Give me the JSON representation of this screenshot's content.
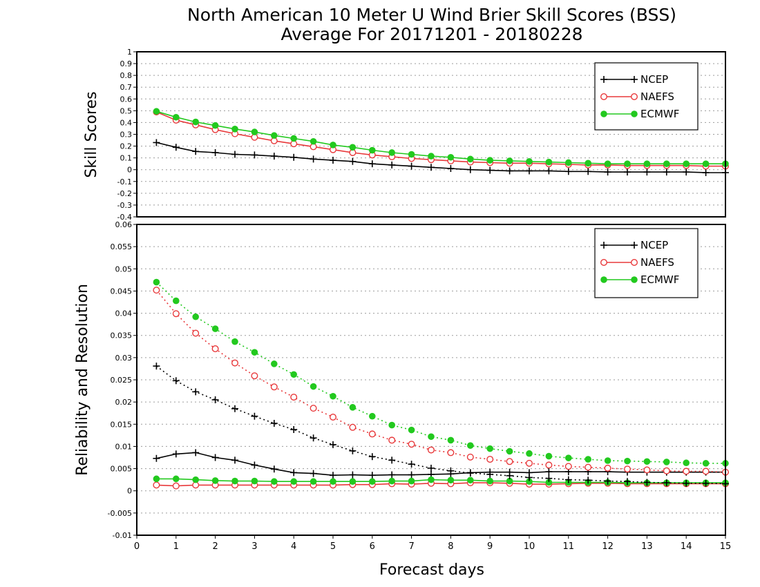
{
  "title": {
    "line1": "North American 10 Meter U Wind Brier Skill Scores (BSS)",
    "line2": "Average For 20171201 - 20180228"
  },
  "xlabel": "Forecast days",
  "colors": {
    "NCEP": "#000000",
    "NAEFS": "#e8383a",
    "ECMWF": "#22c91e"
  },
  "chart_data": [
    {
      "type": "line",
      "ylabel": "Skill Scores",
      "xlim": [
        0,
        15
      ],
      "ylim": [
        -0.4,
        1
      ],
      "yticks": [
        "1",
        "0.9",
        "0.8",
        "0.7",
        "0.6",
        "0.5",
        "0.4",
        "0.3",
        "0.2",
        "0.1",
        "0",
        "-0.1",
        "-0.2",
        "-0.3",
        "-0.4"
      ],
      "grid": true,
      "legend": "top-right",
      "x": [
        0.5,
        1,
        1.5,
        2,
        2.5,
        3,
        3.5,
        4,
        4.5,
        5,
        5.5,
        6,
        6.5,
        7,
        7.5,
        8,
        8.5,
        9,
        9.5,
        10,
        10.5,
        11,
        11.5,
        12,
        12.5,
        13,
        13.5,
        14,
        14.5,
        15
      ],
      "series": [
        {
          "name": "NCEP",
          "marker": "plus",
          "style": "solid",
          "values": [
            0.23,
            0.19,
            0.155,
            0.145,
            0.13,
            0.125,
            0.115,
            0.105,
            0.09,
            0.08,
            0.07,
            0.05,
            0.04,
            0.03,
            0.02,
            0.01,
            0.0,
            -0.005,
            -0.01,
            -0.01,
            -0.01,
            -0.015,
            -0.015,
            -0.02,
            -0.02,
            -0.02,
            -0.02,
            -0.02,
            -0.025,
            -0.025
          ]
        },
        {
          "name": "NAEFS",
          "marker": "open-circle",
          "style": "solid",
          "values": [
            0.49,
            0.42,
            0.38,
            0.34,
            0.305,
            0.275,
            0.245,
            0.22,
            0.195,
            0.17,
            0.145,
            0.125,
            0.11,
            0.095,
            0.085,
            0.075,
            0.065,
            0.06,
            0.055,
            0.055,
            0.05,
            0.045,
            0.04,
            0.04,
            0.035,
            0.035,
            0.035,
            0.035,
            0.03,
            0.03
          ]
        },
        {
          "name": "ECMWF",
          "marker": "filled-circle",
          "style": "solid",
          "values": [
            0.495,
            0.445,
            0.405,
            0.375,
            0.345,
            0.32,
            0.29,
            0.265,
            0.24,
            0.21,
            0.19,
            0.165,
            0.145,
            0.13,
            0.115,
            0.105,
            0.09,
            0.08,
            0.075,
            0.07,
            0.065,
            0.06,
            0.055,
            0.05,
            0.05,
            0.05,
            0.05,
            0.05,
            0.05,
            0.05
          ]
        }
      ]
    },
    {
      "type": "line",
      "ylabel": "Reliability and Resolution",
      "xlim": [
        0,
        15
      ],
      "ylim": [
        -0.01,
        0.06
      ],
      "yticks": [
        "0.06",
        "0.055",
        "0.05",
        "0.045",
        "0.04",
        "0.035",
        "0.03",
        "0.025",
        "0.02",
        "0.015",
        "0.01",
        "0.005",
        "0",
        "-0.005",
        "-0.01"
      ],
      "xticks": [
        "0",
        "1",
        "2",
        "3",
        "4",
        "5",
        "6",
        "7",
        "8",
        "9",
        "10",
        "11",
        "12",
        "13",
        "14",
        "15"
      ],
      "grid": true,
      "legend": "top-right",
      "x": [
        0.5,
        1,
        1.5,
        2,
        2.5,
        3,
        3.5,
        4,
        4.5,
        5,
        5.5,
        6,
        6.5,
        7,
        7.5,
        8,
        8.5,
        9,
        9.5,
        10,
        10.5,
        11,
        11.5,
        12,
        12.5,
        13,
        13.5,
        14,
        14.5,
        15
      ],
      "series": [
        {
          "name": "NCEP",
          "marker": "plus",
          "style": "solid",
          "values": [
            0.0073,
            0.0083,
            0.0086,
            0.0075,
            0.0069,
            0.0058,
            0.0049,
            0.0041,
            0.0039,
            0.0035,
            0.0036,
            0.0035,
            0.0036,
            0.0036,
            0.0037,
            0.0038,
            0.0041,
            0.0042,
            0.0042,
            0.0041,
            0.0043,
            0.0043,
            0.0043,
            0.0043,
            0.0042,
            0.0042,
            0.0042,
            0.0042,
            0.0042,
            0.0042
          ]
        },
        {
          "name": "NAEFS",
          "marker": "open-circle",
          "style": "solid",
          "values": [
            0.0013,
            0.0011,
            0.0013,
            0.0013,
            0.0013,
            0.0013,
            0.0013,
            0.0013,
            0.0013,
            0.0013,
            0.0014,
            0.0014,
            0.0016,
            0.0015,
            0.0017,
            0.0016,
            0.0018,
            0.0018,
            0.0017,
            0.0015,
            0.0015,
            0.0016,
            0.0017,
            0.0017,
            0.0016,
            0.0016,
            0.0016,
            0.0016,
            0.0016,
            0.0016
          ]
        },
        {
          "name": "ECMWF",
          "marker": "filled-circle",
          "style": "solid",
          "values": [
            0.0027,
            0.0027,
            0.0025,
            0.0023,
            0.0022,
            0.0022,
            0.0021,
            0.0021,
            0.0021,
            0.0021,
            0.0021,
            0.0021,
            0.0022,
            0.0022,
            0.0025,
            0.0024,
            0.0024,
            0.0022,
            0.0022,
            0.0021,
            0.0019,
            0.0019,
            0.0019,
            0.0019,
            0.0018,
            0.0018,
            0.0018,
            0.0018,
            0.0018,
            0.0018
          ]
        },
        {
          "name": "NCEP",
          "marker": "plus",
          "style": "dotted",
          "legend": false,
          "values": [
            0.0281,
            0.0248,
            0.0223,
            0.0205,
            0.0185,
            0.0168,
            0.0152,
            0.0138,
            0.0119,
            0.0104,
            0.009,
            0.0077,
            0.0069,
            0.006,
            0.0051,
            0.0045,
            0.004,
            0.0037,
            0.0034,
            0.003,
            0.0028,
            0.0025,
            0.0024,
            0.0022,
            0.0021,
            0.0019,
            0.0018,
            0.0017,
            0.0017,
            0.0016
          ]
        },
        {
          "name": "NAEFS",
          "marker": "open-circle",
          "style": "dotted",
          "legend": false,
          "values": [
            0.0452,
            0.0399,
            0.0355,
            0.032,
            0.0288,
            0.0259,
            0.0234,
            0.0211,
            0.0186,
            0.0166,
            0.0143,
            0.0128,
            0.0114,
            0.0105,
            0.0092,
            0.0086,
            0.0076,
            0.0071,
            0.0066,
            0.0062,
            0.0058,
            0.0055,
            0.0053,
            0.0051,
            0.0049,
            0.0047,
            0.0045,
            0.0044,
            0.0044,
            0.0042
          ]
        },
        {
          "name": "ECMWF",
          "marker": "filled-circle",
          "style": "dotted",
          "legend": false,
          "values": [
            0.047,
            0.0428,
            0.0392,
            0.0365,
            0.0336,
            0.0312,
            0.0286,
            0.0262,
            0.0235,
            0.0213,
            0.0188,
            0.0168,
            0.0148,
            0.0137,
            0.0122,
            0.0114,
            0.0102,
            0.0095,
            0.0089,
            0.0084,
            0.0078,
            0.0074,
            0.0071,
            0.0068,
            0.0067,
            0.0066,
            0.0065,
            0.0063,
            0.0062,
            0.0062
          ]
        }
      ]
    }
  ]
}
